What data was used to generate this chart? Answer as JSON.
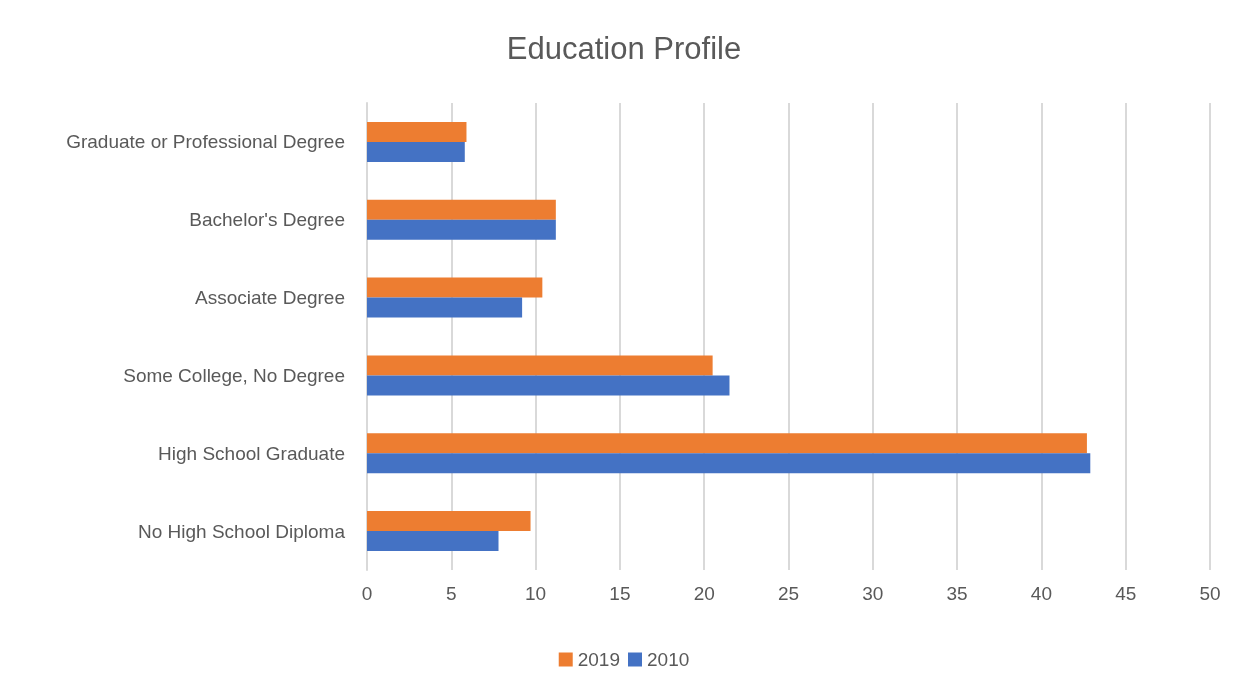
{
  "chart_data": {
    "type": "bar",
    "title": "Education Profile",
    "orientation": "horizontal",
    "categories": [
      "Graduate or Professional Degree",
      "Bachelor's Degree",
      "Associate Degree",
      "Some College, No Degree",
      "High School Graduate",
      "No High School Diploma"
    ],
    "series": [
      {
        "name": "2019",
        "color": "#ed7d31",
        "values": [
          5.9,
          11.2,
          10.4,
          20.5,
          42.7,
          9.7
        ]
      },
      {
        "name": "2010",
        "color": "#4472c4",
        "values": [
          5.8,
          11.2,
          9.2,
          21.5,
          42.9,
          7.8
        ]
      }
    ],
    "xlim": [
      0,
      50
    ],
    "xticks": [
      0,
      5,
      10,
      15,
      20,
      25,
      30,
      35,
      40,
      45,
      50
    ],
    "grid": "x",
    "legend": "bottom"
  }
}
